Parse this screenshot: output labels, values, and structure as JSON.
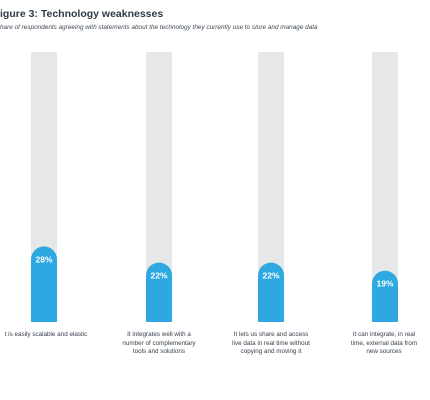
{
  "title": "igure 3: Technology weaknesses",
  "subtitle": "hare of respondents agreeing with statements about the technology they currently use to store and manage data",
  "chart_data": {
    "type": "bar",
    "title": "igure 3: Technology weaknesses",
    "subtitle": "hare of respondents agreeing with statements about the technology they currently use to store and manage data",
    "categories": [
      "t is easily scalable and elastic",
      "It integrates well with a\nnumber of complementary\ntools and solutions",
      "It lets us share and access\nlive data in real time without\ncopying and moving it",
      "It can integrate, in real\ntime, external data from\nnew sources"
    ],
    "values": [
      28,
      22,
      22,
      19
    ],
    "value_labels": [
      "28%",
      "22%",
      "22%",
      "19%"
    ],
    "ylim": [
      0,
      100
    ],
    "grid": false,
    "legend": "none",
    "xlabel": "",
    "ylabel": ""
  },
  "colors": {
    "bar": "#2ea8e0",
    "track": "#e5e7e9",
    "label_text": "#ffffff"
  }
}
